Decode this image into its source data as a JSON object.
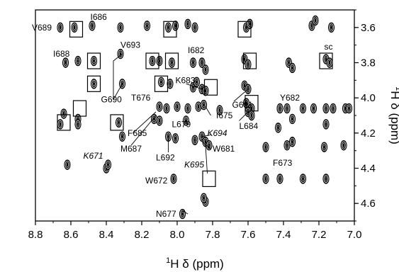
{
  "chart_data": {
    "type": "scatter",
    "title": "",
    "xlabel": "1H δ (ppm)",
    "ylabel": "1H δ (ppm)",
    "xlim": [
      8.8,
      7.0
    ],
    "ylim": [
      4.7,
      3.5
    ],
    "x_reversed": true,
    "y_reversed": true,
    "xticks": [
      "8.8",
      "8.6",
      "8.4",
      "8.2",
      "8.0",
      "7.8",
      "7.6",
      "7.4",
      "7.2",
      "7.0"
    ],
    "yticks": [
      "3.6",
      "3.8",
      "4.0",
      "4.2",
      "4.4",
      "4.6"
    ],
    "peaks": [
      {
        "x": 8.66,
        "y": 3.6
      },
      {
        "x": 8.58,
        "y": 3.6
      },
      {
        "x": 8.48,
        "y": 3.59
      },
      {
        "x": 8.32,
        "y": 3.6
      },
      {
        "x": 8.17,
        "y": 3.59
      },
      {
        "x": 8.05,
        "y": 3.6
      },
      {
        "x": 8.01,
        "y": 3.59
      },
      {
        "x": 7.94,
        "y": 3.58
      },
      {
        "x": 7.9,
        "y": 3.6
      },
      {
        "x": 7.61,
        "y": 3.6
      },
      {
        "x": 7.59,
        "y": 3.58
      },
      {
        "x": 7.24,
        "y": 3.59
      },
      {
        "x": 7.22,
        "y": 3.56
      },
      {
        "x": 7.13,
        "y": 3.6
      },
      {
        "x": 8.63,
        "y": 3.8
      },
      {
        "x": 8.56,
        "y": 3.79
      },
      {
        "x": 8.47,
        "y": 3.79
      },
      {
        "x": 8.32,
        "y": 3.75
      },
      {
        "x": 8.14,
        "y": 3.79
      },
      {
        "x": 8.1,
        "y": 3.79
      },
      {
        "x": 8.03,
        "y": 3.8
      },
      {
        "x": 7.91,
        "y": 3.8
      },
      {
        "x": 7.86,
        "y": 3.8
      },
      {
        "x": 7.84,
        "y": 3.84
      },
      {
        "x": 7.62,
        "y": 3.78
      },
      {
        "x": 7.6,
        "y": 3.81
      },
      {
        "x": 7.37,
        "y": 3.8
      },
      {
        "x": 7.35,
        "y": 3.83
      },
      {
        "x": 7.16,
        "y": 3.78
      },
      {
        "x": 7.14,
        "y": 3.8
      },
      {
        "x": 8.47,
        "y": 3.92
      },
      {
        "x": 8.31,
        "y": 3.92
      },
      {
        "x": 8.09,
        "y": 3.91
      },
      {
        "x": 8.04,
        "y": 3.92
      },
      {
        "x": 7.91,
        "y": 3.94
      },
      {
        "x": 7.86,
        "y": 3.95
      },
      {
        "x": 7.89,
        "y": 3.91
      },
      {
        "x": 7.84,
        "y": 3.96
      },
      {
        "x": 7.62,
        "y": 3.93
      },
      {
        "x": 7.6,
        "y": 3.95
      },
      {
        "x": 8.64,
        "y": 4.09
      },
      {
        "x": 8.56,
        "y": 4.12
      },
      {
        "x": 8.1,
        "y": 4.05
      },
      {
        "x": 8.06,
        "y": 4.06
      },
      {
        "x": 8.0,
        "y": 4.05
      },
      {
        "x": 7.94,
        "y": 4.06
      },
      {
        "x": 7.88,
        "y": 4.05
      },
      {
        "x": 7.85,
        "y": 4.04
      },
      {
        "x": 7.76,
        "y": 4.07
      },
      {
        "x": 7.61,
        "y": 4.03
      },
      {
        "x": 7.58,
        "y": 4.06
      },
      {
        "x": 7.42,
        "y": 4.06
      },
      {
        "x": 7.38,
        "y": 4.06
      },
      {
        "x": 7.29,
        "y": 4.06
      },
      {
        "x": 7.23,
        "y": 4.06
      },
      {
        "x": 7.16,
        "y": 4.06
      },
      {
        "x": 7.12,
        "y": 4.06
      },
      {
        "x": 7.05,
        "y": 4.06
      },
      {
        "x": 7.03,
        "y": 4.06
      },
      {
        "x": 8.66,
        "y": 4.15
      },
      {
        "x": 8.56,
        "y": 4.15
      },
      {
        "x": 8.33,
        "y": 4.14
      },
      {
        "x": 8.13,
        "y": 4.12
      },
      {
        "x": 8.1,
        "y": 4.13
      },
      {
        "x": 7.95,
        "y": 4.13
      },
      {
        "x": 7.6,
        "y": 4.08
      },
      {
        "x": 7.58,
        "y": 4.1
      },
      {
        "x": 7.35,
        "y": 4.12
      },
      {
        "x": 7.16,
        "y": 4.15
      },
      {
        "x": 7.43,
        "y": 4.17
      },
      {
        "x": 8.31,
        "y": 4.22
      },
      {
        "x": 8.05,
        "y": 4.22
      },
      {
        "x": 8.01,
        "y": 4.23
      },
      {
        "x": 7.9,
        "y": 4.24
      },
      {
        "x": 7.86,
        "y": 4.22
      },
      {
        "x": 7.84,
        "y": 4.25
      },
      {
        "x": 7.82,
        "y": 4.27
      },
      {
        "x": 7.5,
        "y": 4.28
      },
      {
        "x": 7.38,
        "y": 4.27
      },
      {
        "x": 7.35,
        "y": 4.25
      },
      {
        "x": 7.17,
        "y": 4.28
      },
      {
        "x": 7.06,
        "y": 4.27
      },
      {
        "x": 8.62,
        "y": 4.38
      },
      {
        "x": 8.4,
        "y": 4.4
      },
      {
        "x": 8.39,
        "y": 4.38
      },
      {
        "x": 8.02,
        "y": 4.46
      },
      {
        "x": 7.5,
        "y": 4.46
      },
      {
        "x": 7.42,
        "y": 4.46
      },
      {
        "x": 7.29,
        "y": 4.46
      },
      {
        "x": 7.16,
        "y": 4.46
      },
      {
        "x": 7.84,
        "y": 4.59
      },
      {
        "x": 7.85,
        "y": 4.57
      },
      {
        "x": 7.97,
        "y": 4.66
      }
    ],
    "boxes": [
      {
        "x": 8.57,
        "y": 3.61
      },
      {
        "x": 8.04,
        "y": 3.61
      },
      {
        "x": 7.62,
        "y": 3.61
      },
      {
        "x": 8.47,
        "y": 3.79
      },
      {
        "x": 8.14,
        "y": 3.79
      },
      {
        "x": 8.03,
        "y": 3.79
      },
      {
        "x": 7.59,
        "y": 3.79
      },
      {
        "x": 7.16,
        "y": 3.79
      },
      {
        "x": 8.47,
        "y": 3.92
      },
      {
        "x": 8.09,
        "y": 3.92
      },
      {
        "x": 7.81,
        "y": 3.94
      },
      {
        "x": 8.55,
        "y": 4.06
      },
      {
        "x": 7.58,
        "y": 4.03
      },
      {
        "x": 8.64,
        "y": 4.14
      },
      {
        "x": 8.34,
        "y": 4.14
      },
      {
        "x": 7.82,
        "y": 4.46
      }
    ],
    "annotations": [
      {
        "text": "V689",
        "x": 8.82,
        "y": 3.6,
        "italic": false
      },
      {
        "text": "I686",
        "x": 8.49,
        "y": 3.54,
        "italic": false
      },
      {
        "text": "I688",
        "x": 8.7,
        "y": 3.75,
        "italic": false
      },
      {
        "text": "V693",
        "x": 8.32,
        "y": 3.7,
        "italic": false
      },
      {
        "text": "I682",
        "x": 7.94,
        "y": 3.73,
        "italic": false
      },
      {
        "text": "sc",
        "x": 7.17,
        "y": 3.71,
        "italic": false
      },
      {
        "text": "K683",
        "x": 8.01,
        "y": 3.9,
        "italic": false
      },
      {
        "text": "T676",
        "x": 8.26,
        "y": 4.0,
        "italic": false
      },
      {
        "text": "G690",
        "x": 8.43,
        "y": 4.01,
        "italic": false
      },
      {
        "text": "G691",
        "x": 7.69,
        "y": 4.04,
        "italic": false
      },
      {
        "text": "Y682",
        "x": 7.42,
        "y": 4.0,
        "italic": false
      },
      {
        "text": "I675",
        "x": 7.78,
        "y": 4.1,
        "italic": false
      },
      {
        "text": "L684",
        "x": 7.65,
        "y": 4.16,
        "italic": false
      },
      {
        "text": "L679",
        "x": 8.03,
        "y": 4.15,
        "italic": false
      },
      {
        "text": "F685",
        "x": 8.28,
        "y": 4.2,
        "italic": false
      },
      {
        "text": "K694",
        "x": 7.83,
        "y": 4.2,
        "italic": true
      },
      {
        "text": "M687",
        "x": 8.32,
        "y": 4.29,
        "italic": false
      },
      {
        "text": "W681",
        "x": 7.8,
        "y": 4.29,
        "italic": false
      },
      {
        "text": "L692",
        "x": 8.12,
        "y": 4.34,
        "italic": false
      },
      {
        "text": "K671",
        "x": 8.53,
        "y": 4.33,
        "italic": true
      },
      {
        "text": "K695",
        "x": 7.96,
        "y": 4.38,
        "italic": true
      },
      {
        "text": "F673",
        "x": 7.46,
        "y": 4.37,
        "italic": false
      },
      {
        "text": "W672",
        "x": 8.18,
        "y": 4.47,
        "italic": false
      },
      {
        "text": "N677",
        "x": 8.12,
        "y": 4.66,
        "italic": false
      }
    ]
  }
}
